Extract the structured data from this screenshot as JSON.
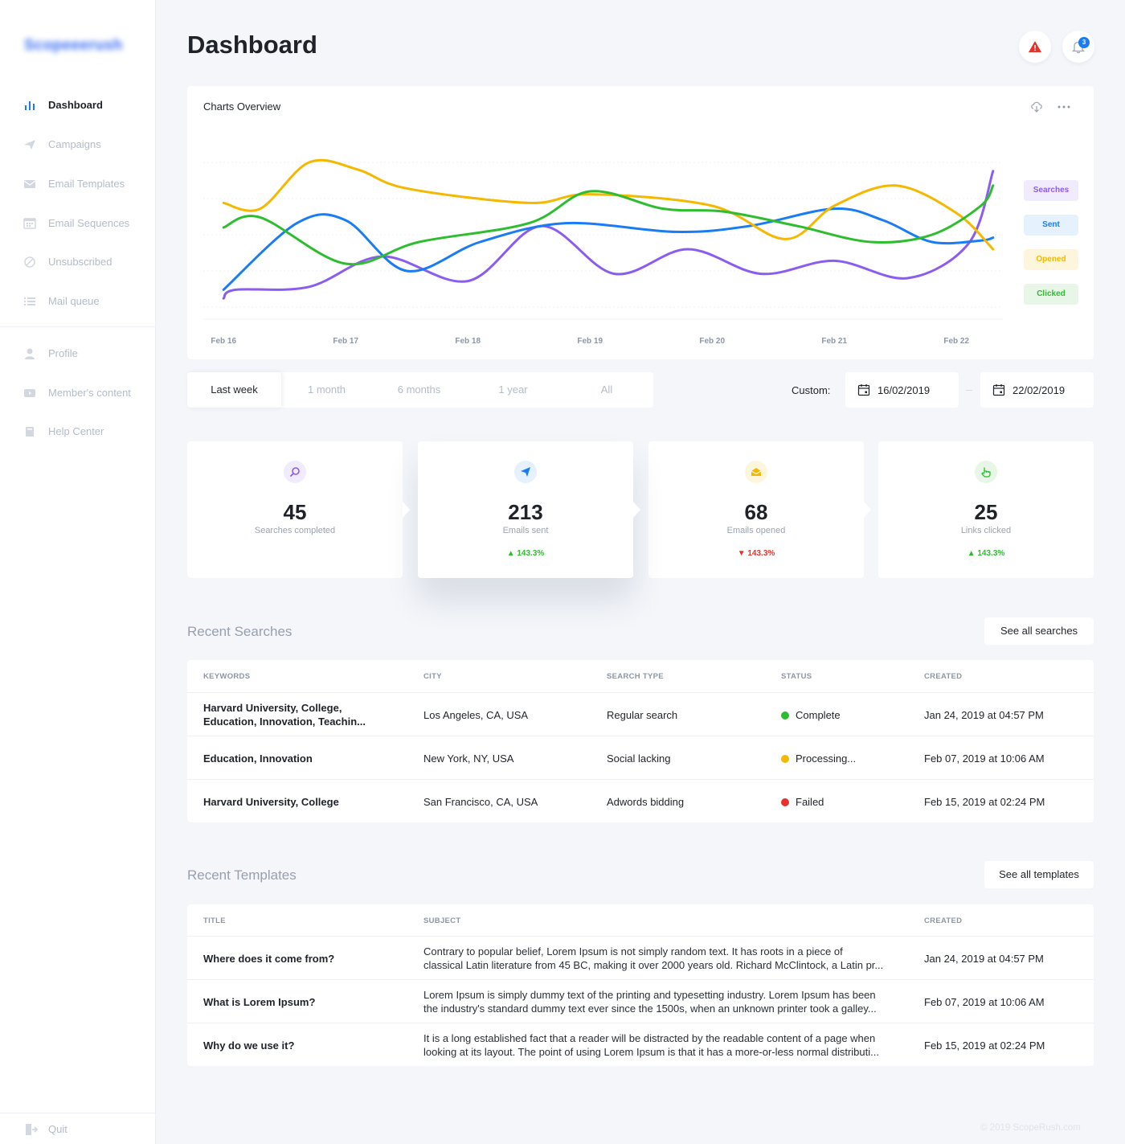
{
  "app": {
    "logo_text": "Scopeeerush"
  },
  "sidebar": {
    "items": [
      {
        "label": "Dashboard",
        "icon": "bar-chart-icon"
      },
      {
        "label": "Campaigns",
        "icon": "paper-plane-icon"
      },
      {
        "label": "Email Templates",
        "icon": "envelope-icon"
      },
      {
        "label": "Email Sequences",
        "icon": "calendar-icon"
      },
      {
        "label": "Unsubscribed",
        "icon": "block-icon"
      },
      {
        "label": "Mail queue",
        "icon": "list-icon"
      },
      {
        "label": "Profile",
        "icon": "user-icon"
      },
      {
        "label": "Member's content",
        "icon": "video-icon"
      },
      {
        "label": "Help Center",
        "icon": "book-icon"
      }
    ],
    "quit_label": "Quit"
  },
  "header": {
    "title": "Dashboard",
    "notification_count": "3"
  },
  "chart": {
    "title": "Charts Overview",
    "legend": [
      "Searches",
      "Sent",
      "Opened",
      "Clicked"
    ]
  },
  "chart_data": {
    "type": "line",
    "x": [
      "Feb 16",
      "Feb 17",
      "Feb 18",
      "Feb 19",
      "Feb 20",
      "Feb 21",
      "Feb 22"
    ],
    "ylim": [
      0,
      100
    ],
    "grid": true,
    "legend_position": "right",
    "series": [
      {
        "name": "Searches",
        "color": "#8b5cf0",
        "x": [
          0,
          0.1,
          0.7,
          1.3,
          2.0,
          2.6,
          3.2,
          3.8,
          4.4,
          5.0,
          5.6,
          6.1,
          6.3
        ],
        "values": [
          6,
          12,
          14,
          35,
          18,
          56,
          23,
          40,
          23,
          32,
          20,
          44,
          94
        ]
      },
      {
        "name": "Sent",
        "color": "#1a7cf5",
        "x": [
          0,
          0.6,
          1.0,
          1.5,
          2.1,
          2.8,
          3.7,
          4.3,
          5.0,
          5.4,
          5.8,
          6.2,
          6.3
        ],
        "values": [
          12,
          58,
          60,
          25,
          45,
          58,
          52,
          56,
          68,
          60,
          45,
          46,
          48
        ]
      },
      {
        "name": "Opened",
        "color": "#f5b800",
        "x": [
          0,
          0.3,
          0.7,
          1.1,
          1.5,
          2.5,
          3.0,
          4.0,
          4.6,
          5.0,
          5.5,
          6.0,
          6.3
        ],
        "values": [
          72,
          68,
          100,
          95,
          82,
          72,
          78,
          70,
          47,
          70,
          84,
          65,
          40
        ]
      },
      {
        "name": "Clicked",
        "color": "#2ebd2e",
        "x": [
          0,
          0.3,
          1.0,
          1.6,
          2.5,
          3.0,
          3.6,
          4.1,
          4.7,
          5.3,
          5.8,
          6.2,
          6.3
        ],
        "values": [
          55,
          62,
          30,
          45,
          58,
          80,
          68,
          66,
          56,
          45,
          50,
          70,
          84
        ]
      }
    ]
  },
  "range": {
    "options": [
      "Last week",
      "1 month",
      "6 months",
      "1 year",
      "All"
    ],
    "custom_label": "Custom:",
    "date_from": "16/02/2019",
    "date_to": "22/02/2019"
  },
  "stats": [
    {
      "value": "45",
      "caption": "Searches completed",
      "change": "",
      "direction": "",
      "color": "#8b5cf0"
    },
    {
      "value": "213",
      "caption": "Emails sent",
      "change": "143.3%",
      "direction": "up",
      "color": "#1a7cf5"
    },
    {
      "value": "68",
      "caption": "Emails opened",
      "change": "143.3%",
      "direction": "down",
      "color": "#f5b800"
    },
    {
      "value": "25",
      "caption": "Links clicked",
      "change": "143.3%",
      "direction": "up",
      "color": "#2ebd2e"
    }
  ],
  "recent_searches": {
    "title": "Recent Searches",
    "see_all": "See all searches",
    "columns": [
      "KEYWORDS",
      "CITY",
      "SEARCH TYPE",
      "STATUS",
      "CREATED"
    ],
    "rows": [
      {
        "keywords_1": "Harvard University, College,",
        "keywords_2": "Education, Innovation, Teachin...",
        "city": "Los Angeles, CA, USA",
        "type": "Regular search",
        "status": "Complete",
        "status_color": "#2ebd2e",
        "created": "Jan 24, 2019 at 04:57 PM"
      },
      {
        "keywords_1": "Education, Innovation",
        "keywords_2": "",
        "city": "New York, NY, USA",
        "type": "Social lacking",
        "status": "Processing...",
        "status_color": "#f5b800",
        "created": "Feb 07, 2019 at 10:06 AM"
      },
      {
        "keywords_1": "Harvard University, College",
        "keywords_2": "",
        "city": "San Francisco, CA, USA",
        "type": "Adwords bidding",
        "status": "Failed",
        "status_color": "#e8312a",
        "created": "Feb 15, 2019 at 02:24 PM"
      }
    ]
  },
  "recent_templates": {
    "title": "Recent Templates",
    "see_all": "See all templates",
    "columns": [
      "TITLE",
      "SUBJECT",
      "CREATED"
    ],
    "rows": [
      {
        "title": "Where does it come from?",
        "subject_1": "Contrary to popular belief, Lorem Ipsum is not simply random text. It has roots in a piece of",
        "subject_2": "classical Latin literature from 45 BC, making it over 2000 years old. Richard McClintock, a Latin pr...",
        "created": "Jan 24, 2019 at 04:57 PM"
      },
      {
        "title": "What is Lorem Ipsum?",
        "subject_1": "Lorem Ipsum is simply dummy text of the printing and typesetting industry. Lorem Ipsum has been",
        "subject_2": "the industry's standard dummy text ever since the 1500s, when an unknown printer took a galley...",
        "created": "Feb 07, 2019 at 10:06 AM"
      },
      {
        "title": "Why do we use it?",
        "subject_1": "It is a long established fact that a reader will be distracted by the readable content of a page when",
        "subject_2": "looking at its layout. The point of using Lorem Ipsum is that it has a more-or-less normal distributi...",
        "created": "Feb 15, 2019 at 02:24 PM"
      }
    ]
  },
  "footer": {
    "copyright": "© 2019 ScopeRush.com"
  }
}
